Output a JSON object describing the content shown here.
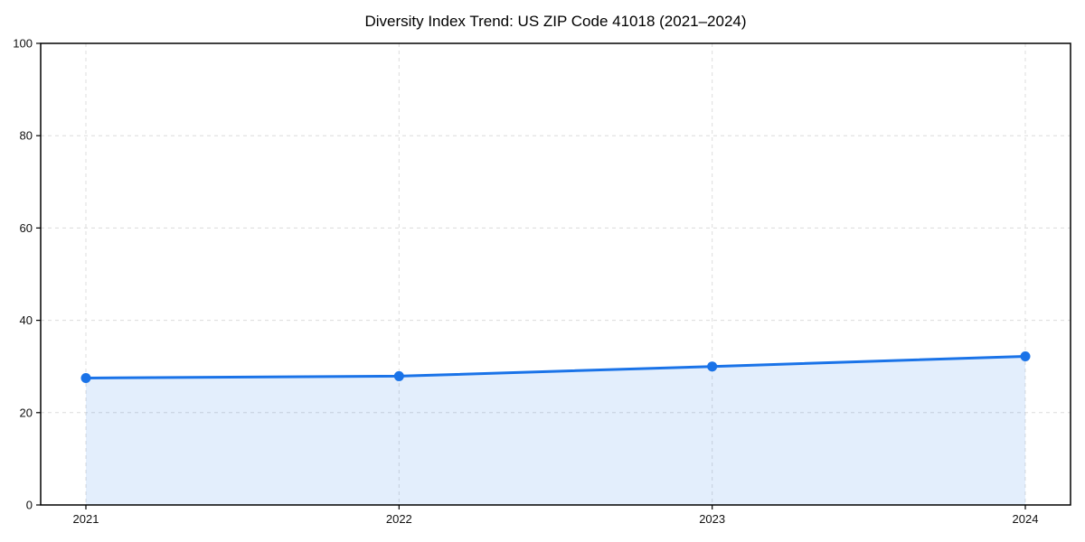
{
  "chart_data": {
    "type": "area",
    "title": "Diversity Index Trend: US ZIP Code 41018 (2021–2024)",
    "categories": [
      "2021",
      "2022",
      "2023",
      "2024"
    ],
    "series": [
      {
        "name": "Diversity Index",
        "values": [
          27.5,
          27.9,
          30.0,
          32.2
        ]
      }
    ],
    "xlabel": "",
    "ylabel": "",
    "ylim": [
      0,
      100
    ],
    "yticks": [
      0,
      20,
      40,
      60,
      80,
      100
    ],
    "grid": "dashed horizontal lines at y-ticks and dashed vertical lines at each year",
    "legend_position": "none",
    "marker": "circle",
    "colors": {
      "line": "#1a73e8",
      "marker": "#1a73e8",
      "fill": "#1a73e8",
      "fill_opacity": 0.12,
      "grid": "#dcdcdc",
      "spine": "#000000",
      "title_text": "#000000",
      "tick_text": "#111111",
      "background": "#ffffff"
    }
  }
}
